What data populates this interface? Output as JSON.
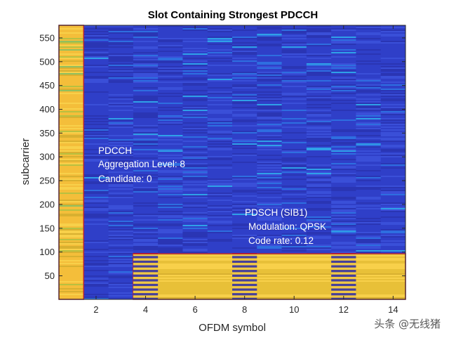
{
  "chart_data": {
    "type": "heatmap",
    "title": "Slot Containing Strongest PDCCH",
    "xlabel": "OFDM symbol",
    "ylabel": "subcarrier",
    "xlim": [
      0.5,
      14.5
    ],
    "ylim": [
      0.5,
      576.5
    ],
    "xticks": [
      2,
      4,
      6,
      8,
      10,
      12,
      14
    ],
    "yticks": [
      50,
      100,
      150,
      200,
      250,
      300,
      350,
      400,
      450,
      500,
      550
    ],
    "colors": {
      "background": "#2f3fc8",
      "pdcch_region": "#f4be3a",
      "pdsch_region": "#e8c038",
      "dmrs_stripe_a": "#f0c845",
      "dmrs_stripe_b": "#46409a",
      "boundary": "#b0203a"
    },
    "regions": [
      {
        "name": "PDCCH",
        "symbols": [
          1,
          1
        ],
        "subcarriers": [
          1,
          576
        ]
      },
      {
        "name": "PDSCH (SIB1)",
        "symbols": [
          4,
          14
        ],
        "subcarriers": [
          1,
          96
        ]
      }
    ],
    "dmrs_symbols": [
      4,
      8,
      12
    ],
    "annotations": {
      "pdcch": {
        "line1": "PDCCH",
        "line2": "Aggregation Level: 8",
        "line3": "Candidate: 0"
      },
      "pdsch": {
        "line1": "PDSCH (SIB1)",
        "line2": "Modulation: QPSK",
        "line3": "Code rate: 0.12"
      }
    }
  },
  "watermark": "头条 @无线猪"
}
